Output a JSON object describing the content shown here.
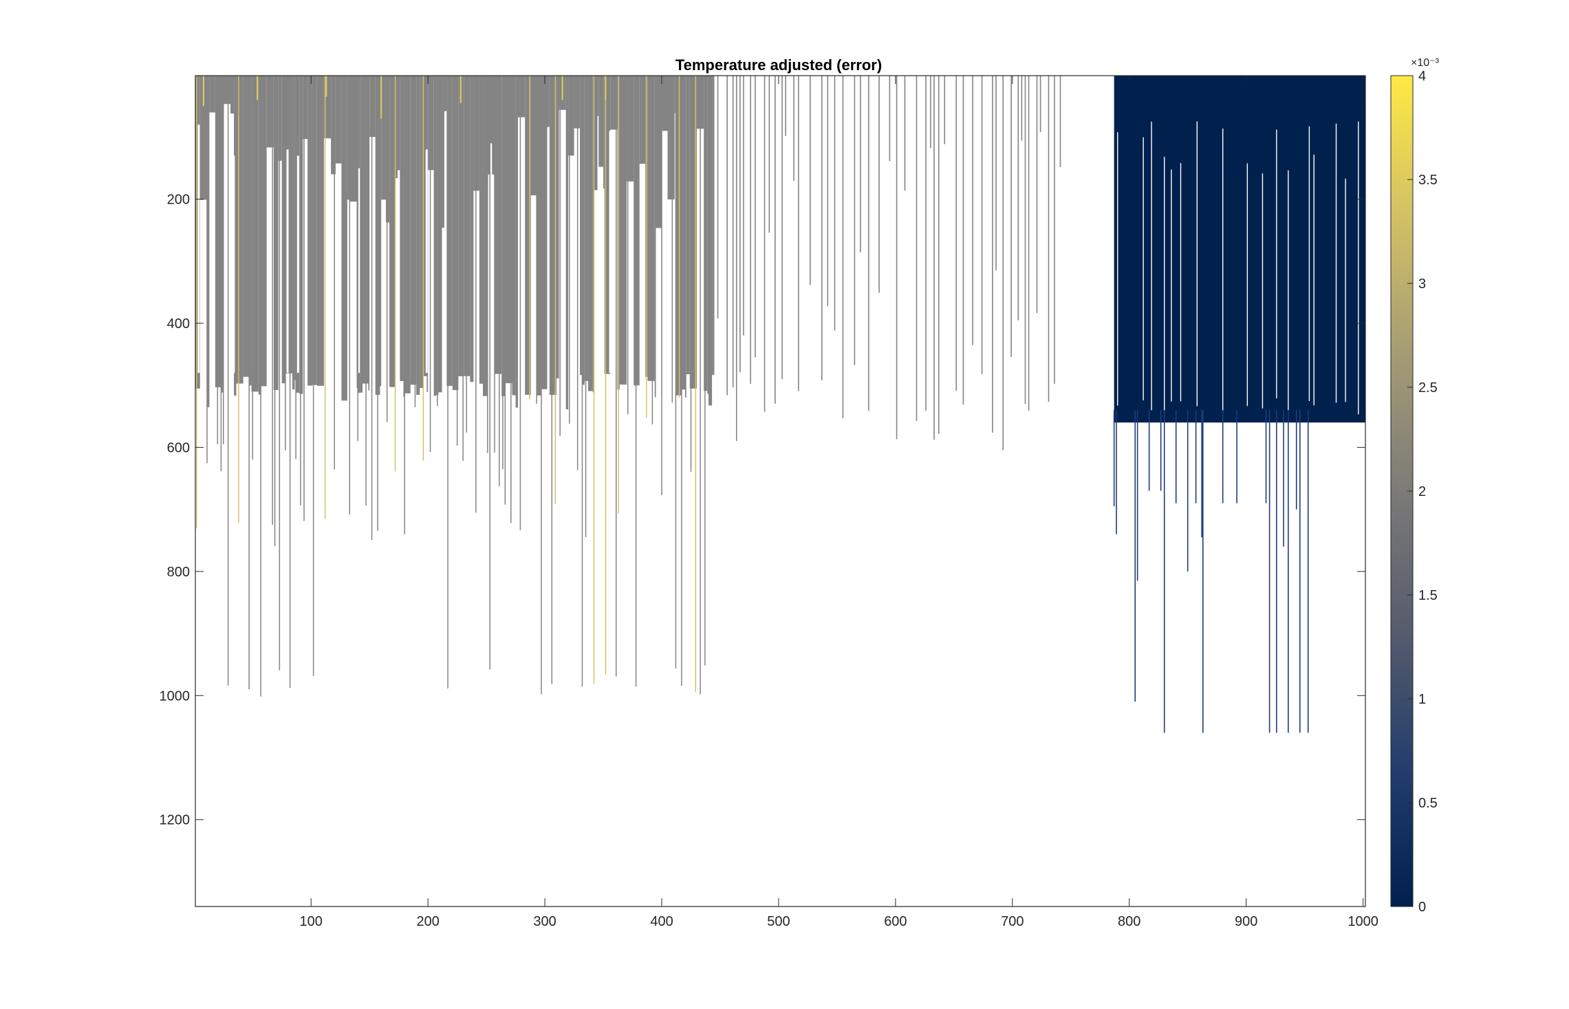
{
  "chart_data": {
    "type": "heatmap",
    "title": "Temperature adjusted (error)",
    "xlabel": "",
    "ylabel": "",
    "xlim": [
      1,
      1002
    ],
    "ylim": [
      1,
      1340
    ],
    "y_reversed": true,
    "x_ticks": [
      100,
      200,
      300,
      400,
      500,
      600,
      700,
      800,
      900,
      1000
    ],
    "y_ticks": [
      200,
      400,
      600,
      800,
      1000,
      1200
    ],
    "grid": false,
    "colormap": "cividis",
    "colormap_stops": [
      "#00204d",
      "#233e6c",
      "#575c6d",
      "#7c7b78",
      "#a59c74",
      "#d3c164",
      "#ffe945"
    ],
    "colorbar": {
      "clim": [
        0,
        0.004
      ],
      "ticks": [
        0,
        0.5,
        1,
        1.5,
        2,
        2.5,
        3,
        3.5,
        4
      ],
      "tick_labels": [
        "0",
        "0.5",
        "1",
        "1.5",
        "2",
        "2.5",
        "3",
        "3.5",
        "4"
      ],
      "exponent_label": "×10⁻³",
      "placement": "right"
    },
    "blocks": [
      {
        "region": "columns 1-445, dense profiles",
        "x_range": [
          1,
          445
        ],
        "depth_main": 500,
        "value": 0.0021,
        "color": "#848484"
      },
      {
        "region": "columns 787-1000",
        "x_range": [
          787,
          1000
        ],
        "depth_main": 560,
        "value": 0.0,
        "color": "#00204d"
      }
    ],
    "background_color": "#ffffff"
  }
}
